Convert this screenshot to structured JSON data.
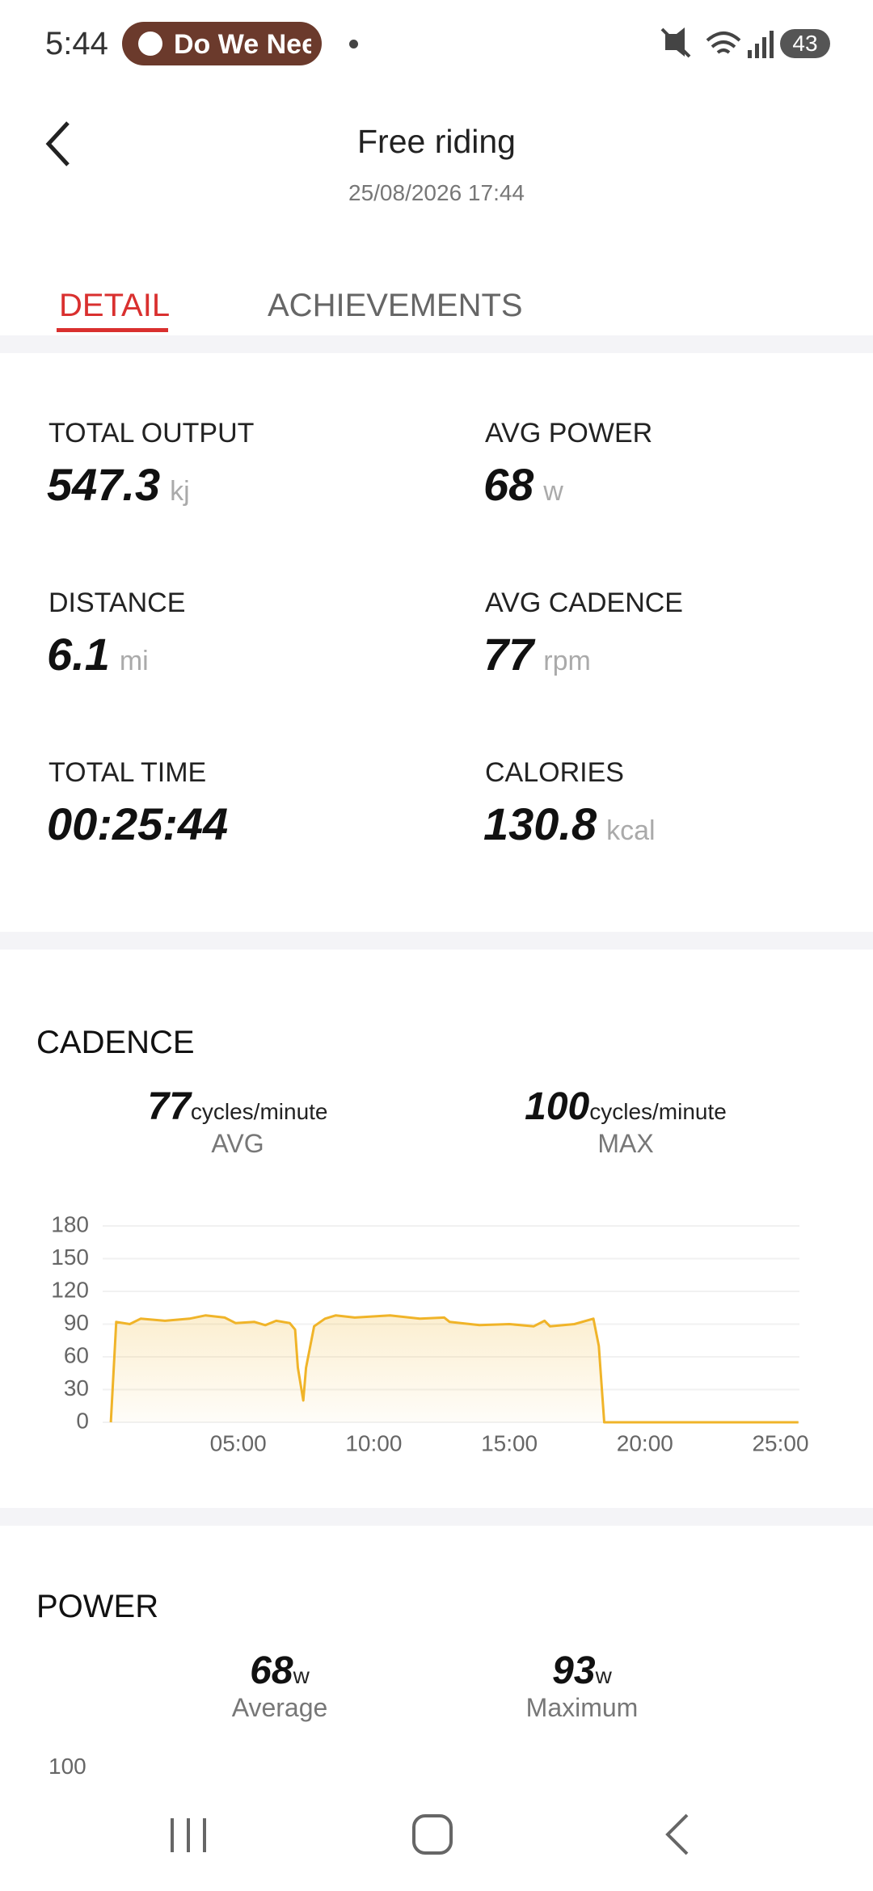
{
  "status_bar": {
    "time": "5:44",
    "notification": "Do We Nee",
    "battery": "43"
  },
  "header": {
    "title": "Free riding",
    "date": "25/08/2026 17:44"
  },
  "tabs": [
    "DETAIL",
    "ACHIEVEMENTS"
  ],
  "stats": [
    {
      "label": "TOTAL OUTPUT",
      "value": 547.3,
      "unit": "kj"
    },
    {
      "label": "AVG POWER",
      "value": 68,
      "unit": "w"
    },
    {
      "label": "DISTANCE",
      "value": 6.1,
      "unit": "mi"
    },
    {
      "label": "AVG CADENCE",
      "value": 77,
      "unit": "rpm"
    },
    {
      "label": "TOTAL TIME",
      "value": "00:25:44"
    },
    {
      "label": "CALORIES",
      "value": 130.8,
      "unit": "kcal"
    }
  ],
  "cadence": {
    "title": "CADENCE",
    "avg": {
      "value": 77,
      "unit": "cycles/minute",
      "label": "AVG"
    },
    "max": {
      "value": 100,
      "unit": "cycles/minute",
      "label": "MAX"
    },
    "chart": {
      "type": "line",
      "color": "#f0b429",
      "grid": true,
      "xlim": [
        0,
        25.7
      ],
      "ylim": [
        0,
        180
      ],
      "yticks": [
        0,
        30,
        60,
        90,
        120,
        150,
        180
      ],
      "xticks": [
        {
          "value": 5,
          "label": "05:00"
        },
        {
          "value": 10,
          "label": "10:00"
        },
        {
          "value": 15,
          "label": "15:00"
        },
        {
          "value": 20,
          "label": "20:00"
        },
        {
          "value": 25,
          "label": "25:00"
        }
      ],
      "x": [
        0.3,
        0.5,
        1.0,
        1.4,
        2.3,
        3.2,
        3.8,
        4.5,
        4.9,
        5.6,
        6.0,
        6.4,
        6.9,
        7.1,
        7.2,
        7.4,
        7.5,
        7.8,
        8.2,
        8.6,
        9.3,
        10.6,
        11.7,
        12.6,
        12.8,
        13.9,
        15.0,
        15.9,
        16.3,
        16.5,
        17.4,
        18.1,
        18.3,
        18.5,
        25.66
      ],
      "values": [
        0,
        92,
        90,
        95,
        93,
        95,
        98,
        96,
        91,
        92,
        89,
        93,
        91,
        85,
        50,
        20,
        50,
        88,
        95,
        98,
        96,
        98,
        95,
        96,
        92,
        89,
        90,
        88,
        93,
        88,
        90,
        95,
        70,
        0,
        0
      ]
    }
  },
  "power": {
    "title": "POWER",
    "avg": {
      "value": 68,
      "unit": "w",
      "label": "Average"
    },
    "max": {
      "value": 93,
      "unit": "w",
      "label": "Maximum"
    },
    "top_tick": 100
  }
}
